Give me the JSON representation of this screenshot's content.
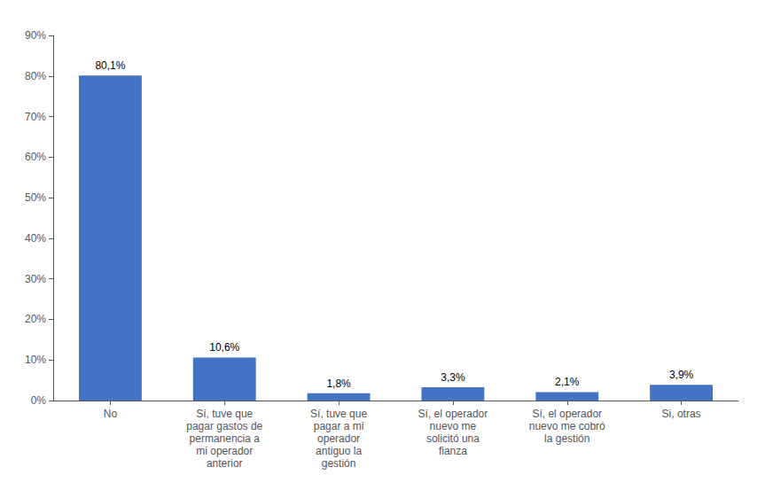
{
  "chart_data": {
    "type": "bar",
    "categories": [
      "No",
      "Sí, tuve que\npagar gastos de\npermanencia a\nmi operador\nanterior",
      "Sí, tuve que\npagar a mi\noperador\nantiguo la\ngestión",
      "Sí, el operador\nnuevo me\nsolicitó una\nfianza",
      "Sí, el operador\nnuevo me cobró\nla gestión",
      "Si, otras"
    ],
    "values": [
      80.1,
      10.6,
      1.8,
      3.3,
      2.1,
      3.9
    ],
    "value_labels": [
      "80,1%",
      "10,6%",
      "1,8%",
      "3,3%",
      "2,1%",
      "3,9%"
    ],
    "color": "#4472C4",
    "ylim": [
      0,
      90
    ],
    "yticks": [
      {
        "value": 0,
        "label": "0%"
      },
      {
        "value": 10,
        "label": "10%"
      },
      {
        "value": 20,
        "label": "20%"
      },
      {
        "value": 30,
        "label": "30%"
      },
      {
        "value": 40,
        "label": "40%"
      },
      {
        "value": 50,
        "label": "50%"
      },
      {
        "value": 60,
        "label": "60%"
      },
      {
        "value": 70,
        "label": "70%"
      },
      {
        "value": 80,
        "label": "80%"
      },
      {
        "value": 90,
        "label": "90%"
      }
    ],
    "grid": false,
    "data_labels": true
  }
}
